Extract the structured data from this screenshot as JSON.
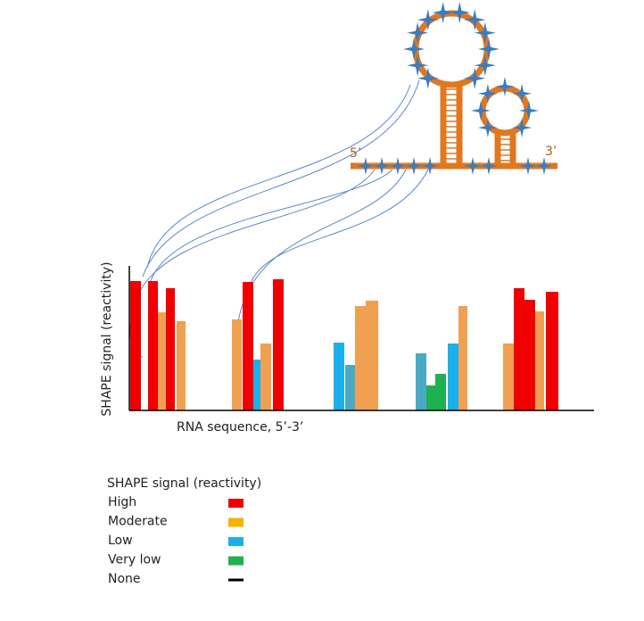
{
  "structure": {
    "five_prime": "5’",
    "three_prime": "3’"
  },
  "chart": {
    "y_label": "SHAPE signal (reactivity)",
    "x_label": "RNA sequence, 5’-3’"
  },
  "legend": {
    "title": "SHAPE signal (reactivity)",
    "items": [
      {
        "label": "High",
        "color": "#f00000"
      },
      {
        "label": "Moderate",
        "color": "#f5b400"
      },
      {
        "label": "Low",
        "color": "#1cb0ea"
      },
      {
        "label": "Very low",
        "color": "#1fb050"
      },
      {
        "label": "None",
        "color": "#000000"
      }
    ]
  }
}
